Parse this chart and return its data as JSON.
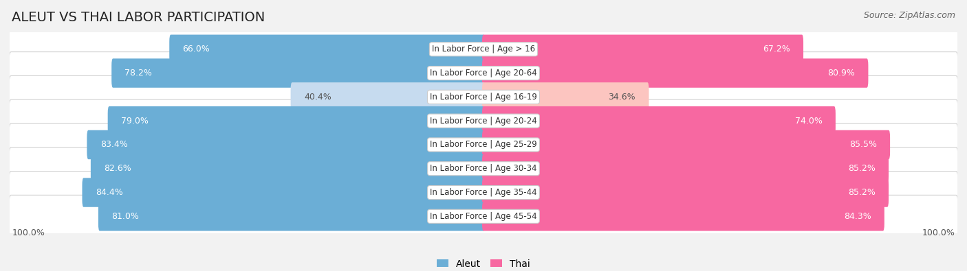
{
  "title": "ALEUT VS THAI LABOR PARTICIPATION",
  "source": "Source: ZipAtlas.com",
  "categories": [
    "In Labor Force | Age > 16",
    "In Labor Force | Age 20-64",
    "In Labor Force | Age 16-19",
    "In Labor Force | Age 20-24",
    "In Labor Force | Age 25-29",
    "In Labor Force | Age 30-34",
    "In Labor Force | Age 35-44",
    "In Labor Force | Age 45-54"
  ],
  "aleut_values": [
    66.0,
    78.2,
    40.4,
    79.0,
    83.4,
    82.6,
    84.4,
    81.0
  ],
  "thai_values": [
    67.2,
    80.9,
    34.6,
    74.0,
    85.5,
    85.2,
    85.2,
    84.3
  ],
  "aleut_color": "#6baed6",
  "aleut_color_light": "#c6dbef",
  "thai_color": "#f768a1",
  "thai_color_light": "#fcc5c0",
  "bg_color": "#f2f2f2",
  "row_bg_color": "#e8e8e8",
  "bar_height": 0.62,
  "max_val": 100.0,
  "title_fontsize": 14,
  "label_fontsize": 9,
  "cat_fontsize": 8.5,
  "legend_fontsize": 10,
  "source_fontsize": 9,
  "bottom_label": "100.0%"
}
